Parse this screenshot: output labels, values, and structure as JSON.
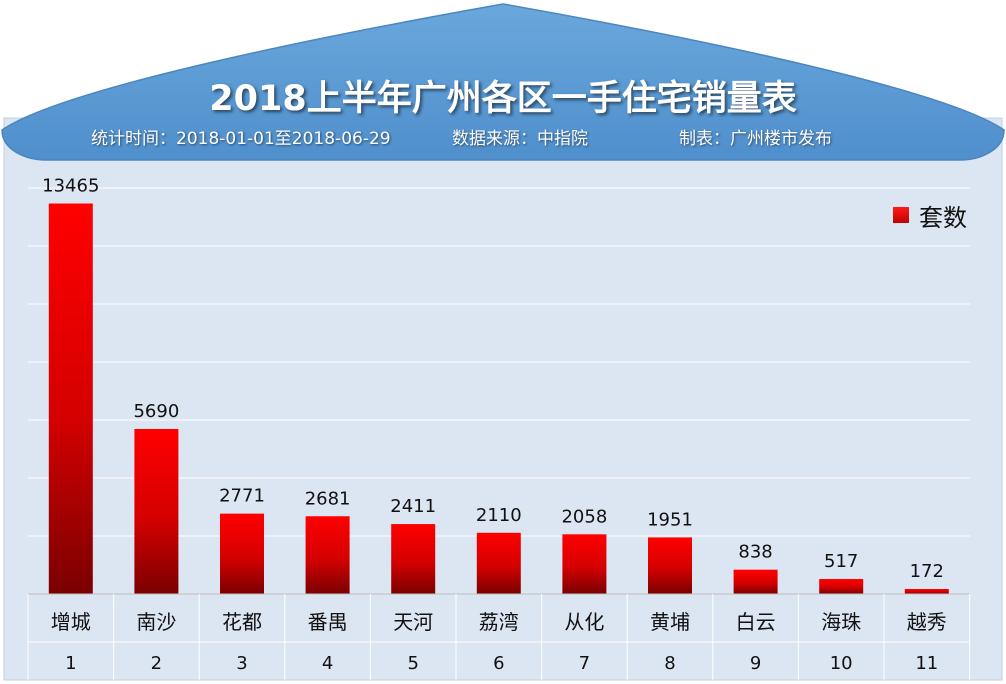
{
  "header": {
    "title": "2018上半年广州各区一手住宅销量表",
    "period": "统计时间：2018-01-01至2018-06-29",
    "source": "数据来源：中指院",
    "maker": "制表：广州楼市发布"
  },
  "colors": {
    "header_blue": "#5b9bd5",
    "plot_bg": "#dce6f2",
    "bar_top": "#ff0000",
    "bar_bottom": "#7a0000",
    "text": "#111111"
  },
  "chart_data": {
    "type": "bar",
    "title": "2018上半年广州各区一手住宅销量表",
    "legend_position": "top-right",
    "grid": true,
    "ylim": [
      0,
      14000
    ],
    "categories": [
      "增城",
      "南沙",
      "花都",
      "番禺",
      "天河",
      "荔湾",
      "从化",
      "黄埔",
      "白云",
      "海珠",
      "越秀"
    ],
    "index_labels": [
      "1",
      "2",
      "3",
      "4",
      "5",
      "6",
      "7",
      "8",
      "9",
      "10",
      "11"
    ],
    "series": [
      {
        "name": "套数",
        "values": [
          13465,
          5690,
          2771,
          2681,
          2411,
          2110,
          2058,
          1951,
          838,
          517,
          172
        ]
      }
    ]
  }
}
